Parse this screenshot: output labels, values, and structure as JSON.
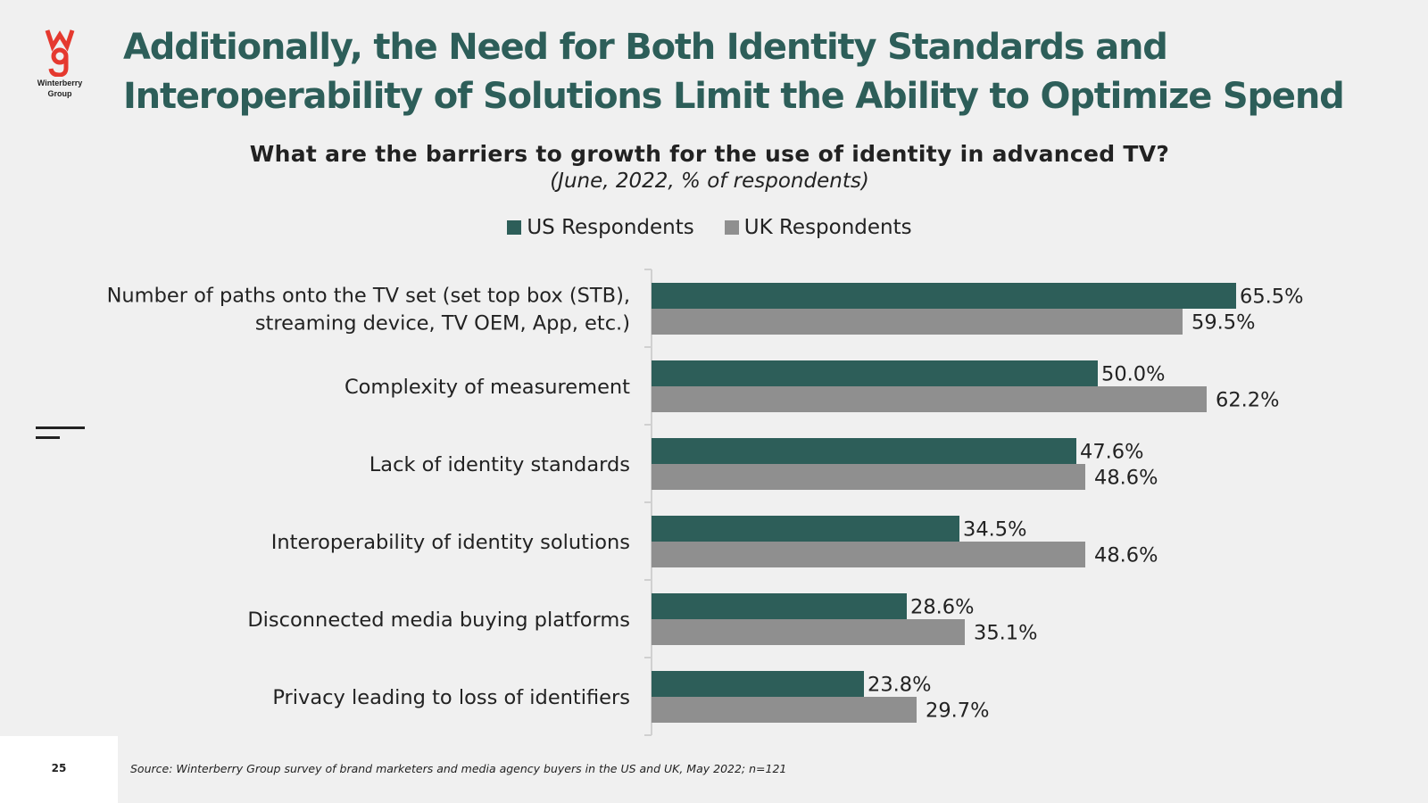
{
  "logo": {
    "mark": "wg",
    "brand_line1": "Winterberry",
    "brand_line2": "Group"
  },
  "header": {
    "title_line1": "Additionally, the Need for Both Identity Standards and",
    "title_line2": "Interoperability of Solutions Limit the Ability to Optimize Spend"
  },
  "footer": {
    "page_number": "25",
    "source": "Source: Winterberry Group survey of brand marketers and media agency buyers in the US and UK, May 2022; n=121"
  },
  "colors": {
    "accent": "#2d5e59",
    "secondary": "#8f8f8f",
    "title": "#2d5e59",
    "logo_red": "#e5392f"
  },
  "chart_data": {
    "type": "bar",
    "orientation": "horizontal",
    "title": "What are the barriers to growth for the use of identity in advanced TV?",
    "subtitle": "(June, 2022, % of respondents)",
    "categories": [
      [
        "Number of paths onto the TV set (set top box (STB),",
        "streaming device, TV OEM, App, etc.)"
      ],
      [
        "Complexity of measurement"
      ],
      [
        "Lack of identity standards"
      ],
      [
        "Interoperability of identity solutions"
      ],
      [
        "Disconnected media buying platforms"
      ],
      [
        "Privacy leading to loss of identifiers"
      ]
    ],
    "series": [
      {
        "name": "US Respondents",
        "color": "#2d5e59",
        "values": [
          65.5,
          50.0,
          47.6,
          34.5,
          28.6,
          23.8
        ]
      },
      {
        "name": "UK Respondents",
        "color": "#8f8f8f",
        "values": [
          59.5,
          62.2,
          48.6,
          48.6,
          35.1,
          29.7
        ]
      }
    ],
    "value_suffix": "%",
    "value_decimals": 1,
    "legend_position": "top-center",
    "grid": false,
    "xlim": [
      0,
      85
    ]
  }
}
